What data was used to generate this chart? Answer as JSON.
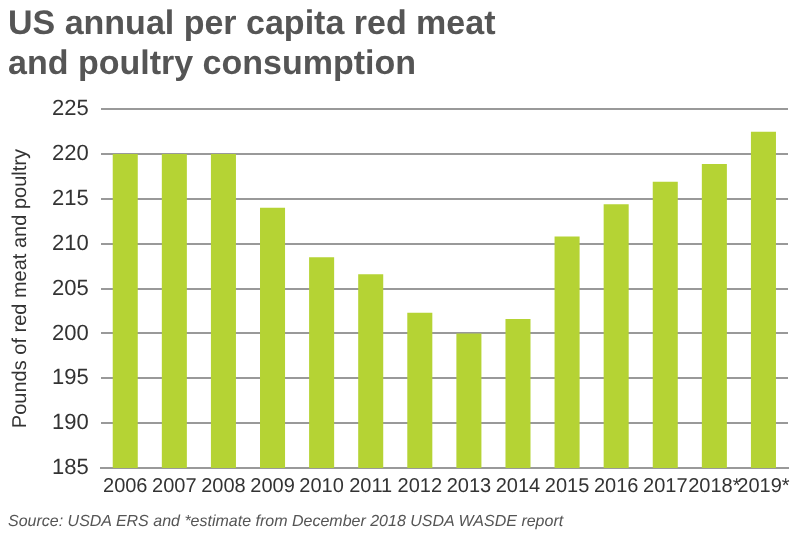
{
  "chart_data": {
    "type": "bar",
    "title": "US annual per capita red meat and poultry consumption",
    "ylabel": "Pounds of red meat and poultry",
    "categories": [
      "2006",
      "2007",
      "2008",
      "2009",
      "2010",
      "2011",
      "2012",
      "2013",
      "2014",
      "2015",
      "2016",
      "2017",
      "2018*",
      "2019*"
    ],
    "values": [
      220,
      220,
      220,
      214,
      208.5,
      206.6,
      202.3,
      200,
      201.6,
      210.8,
      214.4,
      216.9,
      218.9,
      222.5
    ],
    "color": "#b5d334",
    "ylim": [
      185,
      225
    ],
    "yticks": [
      185,
      190,
      195,
      200,
      205,
      210,
      215,
      220,
      225
    ],
    "grid": "y",
    "annotations": [
      "Source: USDA ERS and *estimate from December 2018 USDA WASDE report"
    ]
  }
}
